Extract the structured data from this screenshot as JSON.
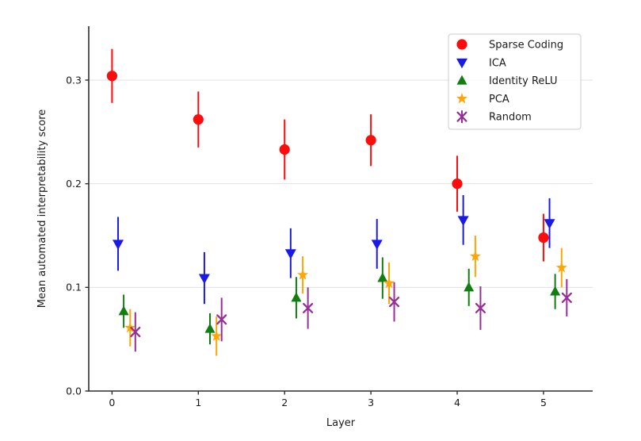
{
  "figure": {
    "background": "#ffffff",
    "axis_color": "#2e2e2e",
    "grid_color": "#e1e1e1",
    "text_color": "#1a1a1a",
    "legend_border_color": "#cccccc",
    "legend_background": "rgba(255,255,255,0.82)"
  },
  "chart_data": {
    "type": "scatter",
    "title": "",
    "xlabel": "Layer",
    "ylabel": "Mean automated interpretability score",
    "xlim": [
      -0.27,
      5.57
    ],
    "ylim": [
      0,
      0.352
    ],
    "xticks": [
      0,
      1,
      2,
      3,
      4,
      5
    ],
    "xtick_labels": [
      "0",
      "1",
      "2",
      "3",
      "4",
      "5"
    ],
    "yticks": [
      0,
      0.1,
      0.2,
      0.3
    ],
    "ytick_labels": [
      "0.0",
      "0.1",
      "0.2",
      "0.3"
    ],
    "grid": "horizontal-only",
    "legend_position": "upper-right",
    "error_bars": true,
    "x": [
      0,
      1,
      2,
      3,
      4,
      5
    ],
    "series": [
      {
        "name": "Sparse Coding",
        "marker": "circle",
        "color": "#fb0d0d",
        "x_offset": 0.0,
        "values": [
          0.304,
          0.262,
          0.233,
          0.242,
          0.2,
          0.148
        ],
        "errors": [
          0.026,
          0.027,
          0.029,
          0.025,
          0.027,
          0.023
        ]
      },
      {
        "name": "ICA",
        "marker": "triangle-down",
        "color": "#1a1ae6",
        "x_offset": 0.07,
        "values": [
          0.142,
          0.109,
          0.133,
          0.142,
          0.165,
          0.162
        ],
        "errors": [
          0.026,
          0.025,
          0.024,
          0.024,
          0.024,
          0.024
        ]
      },
      {
        "name": "Identity ReLU",
        "marker": "triangle-up",
        "color": "#107e10",
        "x_offset": 0.135,
        "values": [
          0.077,
          0.06,
          0.09,
          0.109,
          0.1,
          0.096
        ],
        "errors": [
          0.016,
          0.015,
          0.02,
          0.02,
          0.018,
          0.017
        ]
      },
      {
        "name": "PCA",
        "marker": "star",
        "color": "#ffa506",
        "x_offset": 0.21,
        "values": [
          0.061,
          0.053,
          0.112,
          0.104,
          0.13,
          0.119
        ],
        "errors": [
          0.018,
          0.019,
          0.018,
          0.02,
          0.02,
          0.019
        ]
      },
      {
        "name": "Random",
        "marker": "x",
        "color": "#963096",
        "x_offset": 0.27,
        "values": [
          0.057,
          0.069,
          0.08,
          0.086,
          0.08,
          0.09
        ],
        "errors": [
          0.019,
          0.021,
          0.02,
          0.019,
          0.021,
          0.018
        ]
      }
    ]
  }
}
